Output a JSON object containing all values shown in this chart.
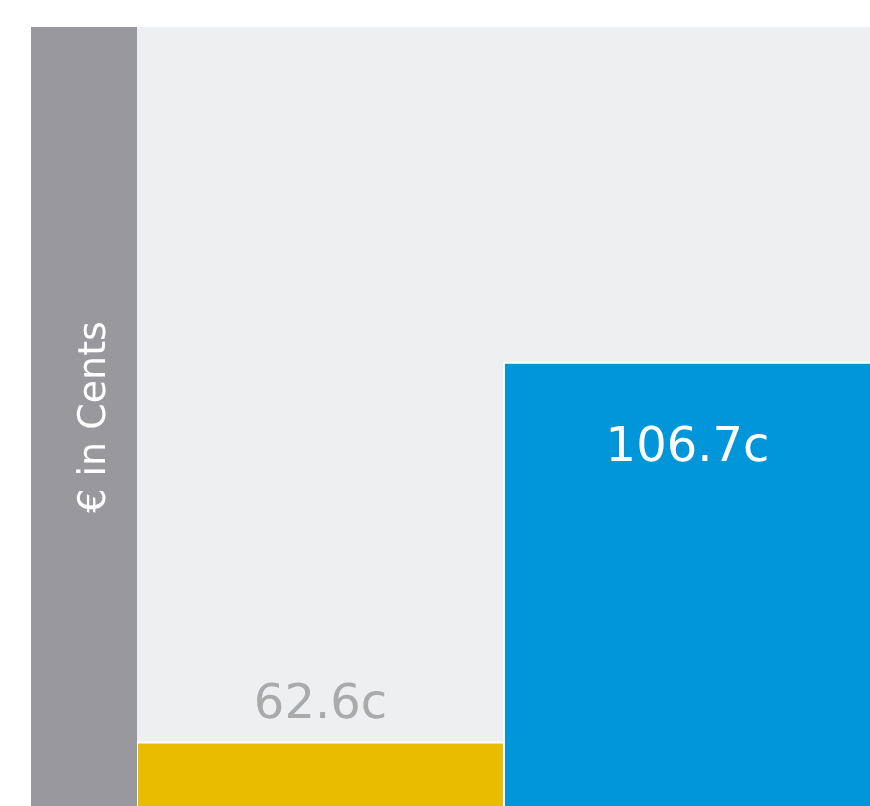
{
  "chart_data": {
    "type": "bar",
    "ylabel": "€ in Cents",
    "categories": [
      null,
      null
    ],
    "values": [
      62.6,
      106.7
    ],
    "colors": [
      "#e9bc00",
      "#0096d9"
    ],
    "value_labels": [
      "62.6c",
      "106.7c"
    ],
    "ylim": [
      55.1,
      145.7
    ],
    "tick_labels": false,
    "grid": false
  }
}
